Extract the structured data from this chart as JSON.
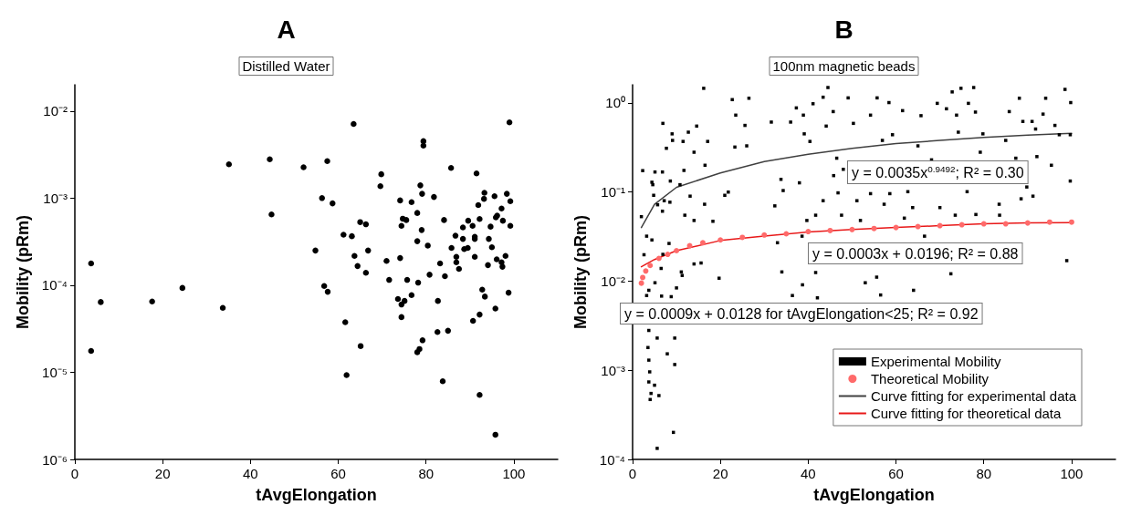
{
  "chart_data": [
    {
      "type": "scatter",
      "title": "A",
      "subtitle": "Distilled Water",
      "xlabel": "tAvgElongation",
      "ylabel": "Mobility (pRm)",
      "log": "y",
      "xlim": [
        0,
        110
      ],
      "xticks": [
        0,
        20,
        40,
        60,
        80,
        100
      ],
      "ylim": [
        1e-06,
        0.02
      ],
      "yticks": [
        {
          "value": 1e-06,
          "label": "10⁻⁶"
        },
        {
          "value": 1e-05,
          "label": "10⁻⁵"
        },
        {
          "value": 0.0001,
          "label": "10⁻⁴"
        },
        {
          "value": 0.001,
          "label": "10⁻³"
        },
        {
          "value": 0.01,
          "label": "10⁻²"
        }
      ],
      "series": [
        {
          "color": "#000000",
          "marker": "circle",
          "x": [
            3.7,
            3.7,
            5.9,
            17.6,
            24.5,
            33.7,
            35.1,
            44.4,
            44.8,
            52.1,
            54.8,
            56.3,
            57.5,
            56.8,
            57.6,
            58.7,
            61.2,
            61.6,
            61.9,
            63.5,
            63.1,
            63.7,
            64.4,
            65.0,
            65.1,
            66.3,
            66.3,
            66.8,
            69.8,
            69.6,
            71.0,
            71.6,
            73.6,
            74.1,
            74.1,
            74.4,
            74.4,
            74.4,
            74.7,
            75.1,
            75.5,
            75.7,
            76.7,
            76.7,
            78.0,
            78.0,
            78.2,
            78.0,
            78.5,
            78.7,
            79.1,
            79.0,
            79.2,
            79.4,
            79.4,
            80.4,
            80.8,
            81.8,
            82.7,
            82.6,
            83.2,
            83.8,
            84.1,
            84.3,
            85.0,
            85.7,
            85.8,
            86.7,
            86.9,
            86.9,
            87.5,
            88.4,
            88.4,
            88.7,
            89.5,
            89.6,
            90.6,
            90.7,
            91.1,
            91.1,
            91.1,
            91.5,
            91.9,
            92.2,
            92.2,
            92.2,
            92.8,
            93.2,
            93.3,
            93.4,
            94.1,
            94.3,
            94.7,
            95.0,
            95.6,
            95.8,
            95.8,
            95.9,
            96.1,
            96.2,
            97.2,
            97.2,
            97.4,
            97.5,
            98.1,
            98.4,
            98.8,
            99.0,
            99.2,
            99.2
          ],
          "values": [
            0.000178,
            1.76e-05,
            6.4e-05,
            6.5e-05,
            9.3e-05,
            5.5e-05,
            0.00244,
            0.00279,
            0.00065,
            0.00226,
            0.00025,
            0.001,
            0.00266,
            9.8e-05,
            8.4e-05,
            0.00087,
            0.00038,
            3.76e-05,
            9.3e-06,
            0.0071,
            0.000365,
            0.000217,
            0.000166,
            0.00053,
            2e-05,
            0.0005,
            0.000139,
            0.00025,
            0.00188,
            0.00137,
            0.00019,
            0.000115,
            6.95e-05,
            0.00094,
            0.000205,
            0.00048,
            6e-05,
            4.3e-05,
            0.00058,
            6.6e-05,
            0.00056,
            0.000115,
            0.0009,
            7.7e-05,
            0.000675,
            0.00032,
            0.000107,
            1.7e-05,
            1.85e-05,
            0.0014,
            0.00112,
            0.00043,
            2.33e-05,
            0.0045,
            0.004,
            0.000285,
            0.000132,
            0.00103,
            6.6e-05,
            2.9e-05,
            0.000178,
            7.9e-06,
            0.00056,
            0.000127,
            3e-05,
            0.00222,
            0.000268,
            0.00037,
            0.000212,
            0.000183,
            0.000154,
            0.00046,
            0.00034,
            0.00026,
            0.000268,
            0.00055,
            0.00048,
            3.9e-05,
            0.00036,
            0.00034,
            0.000212,
            0.00192,
            0.00083,
            0.000575,
            4.6e-05,
            5.5e-06,
            8.9e-05,
            0.00098,
            0.00115,
            7.4e-05,
            0.00017,
            0.00034,
            0.00047,
            0.000273,
            0.00105,
            5.4e-05,
            1.92e-06,
            0.0006,
            0.000198,
            0.00063,
            0.00076,
            0.000183,
            0.000163,
            0.00055,
            0.000217,
            0.00112,
            8.2e-05,
            0.0074,
            0.00092,
            0.00048
          ]
        }
      ]
    },
    {
      "type": "scatter",
      "title": "B",
      "subtitle": "100nm magnetic beads",
      "xlabel": "tAvgElongation",
      "ylabel": "Mobility (pRm)",
      "log": "y",
      "legend": "bottom right",
      "xlim": [
        0,
        110
      ],
      "xticks": [
        0,
        20,
        40,
        60,
        80,
        100
      ],
      "ylim": [
        0.0001,
        1.6
      ],
      "yticks": [
        {
          "value": 0.0001,
          "label": "10⁻⁴"
        },
        {
          "value": 0.001,
          "label": "10⁻³"
        },
        {
          "value": 0.01,
          "label": "10⁻²"
        },
        {
          "value": 0.1,
          "label": "10⁻¹"
        },
        {
          "value": 1,
          "label": "10⁰"
        }
      ],
      "annotations": [
        "y = 0.0035x$^{0.9492}$; R² = 0.30",
        "y = 0.0003x + 0.0196; R² = 0.88",
        "y = 0.0009x + 0.0128 for tAvgElongation<25; R² = 0.92"
      ],
      "series": [
        {
          "name": "Experimental Mobility",
          "type": "scatter",
          "color": "#000000",
          "marker": "square",
          "x": [
            2.3,
            2.0,
            2.6,
            3.2,
            3.7,
            3.7,
            3.5,
            3.7,
            3.9,
            3.7,
            4.2,
            4.0,
            5.0,
            6.0,
            5.6,
            9.3,
            9.6,
            9.6,
            7.9,
            5.6,
            4.4,
            4.6,
            5.1,
            4.8,
            5.7,
            6.9,
            6.8,
            6.8,
            7.2,
            7.7,
            8.5,
            9.0,
            9.1,
            8.6,
            10.8,
            11.5,
            12.7,
            14.6,
            11.7,
            14.0,
            13.1,
            11.9,
            14.0,
            16.2,
            17.1,
            16.5,
            16.4,
            15.6,
            14.0,
            11.1,
            11.3,
            10.0,
            8.8,
            6.6,
            6.9,
            8.3,
            3.2,
            4.4,
            5.1,
            6.5,
            18.3,
            19.7,
            21.0,
            22.7,
            23.5,
            25.6,
            26.5,
            23.3,
            26.0,
            21.8,
            31.6,
            32.4,
            33.0,
            34.0,
            34.3,
            33.8,
            36.0,
            36.4,
            37.3,
            38.0,
            38.9,
            39.1,
            39.7,
            38.6,
            38.7,
            41.1,
            41.7,
            40.4,
            41.7,
            43.4,
            43.4,
            42.1,
            44.1,
            44.5,
            45.7,
            46.5,
            45.8,
            46.8,
            47.6,
            48.0,
            49.1,
            50.3,
            51.1,
            51.9,
            53.0,
            54.2,
            54.2,
            55.7,
            55.6,
            56.5,
            56.9,
            57.3,
            58.4,
            58.6,
            59.2,
            61.5,
            61.9,
            62.7,
            64.0,
            63.8,
            65.0,
            65.7,
            66.5,
            68.1,
            69.4,
            70.0,
            71.5,
            72.5,
            72.8,
            73.8,
            74.2,
            74.8,
            76.2,
            76.5,
            77.7,
            78.1,
            78.2,
            79.2,
            79.8,
            83.6,
            85.0,
            85.8,
            87.3,
            88.1,
            88.5,
            88.9,
            89.8,
            91.0,
            91.2,
            91.8,
            92.1,
            93.5,
            94.1,
            96.2,
            97.2,
            98.5,
            98.9,
            99.7,
            99.8,
            99.7,
            73.5,
            83.5,
            95.4
          ],
          "values": [
            0.174,
            0.053,
            0.0198,
            0.0069,
            0.0079,
            0.0028,
            0.0018,
            0.0013,
            0.00096,
            0.00074,
            0.00055,
            0.00047,
            0.00068,
            0.00052,
            0.000133,
            0.000201,
            0.00116,
            0.0023,
            0.00153,
            0.0023,
            0.129,
            0.121,
            0.168,
            0.092,
            0.072,
            0.59,
            0.168,
            0.061,
            0.08,
            0.31,
            0.077,
            0.45,
            0.38,
            0.133,
            0.121,
            0.37,
            0.47,
            0.55,
            0.175,
            0.28,
            0.09,
            0.055,
            0.048,
            1.46,
            0.37,
            0.2,
            0.073,
            0.016,
            0.0156,
            0.0127,
            0.0116,
            0.0084,
            0.0067,
            0.0068,
            0.02,
            0.0265,
            0.032,
            0.029,
            0.0096,
            0.0139,
            0.047,
            0.0108,
            0.092,
            1.09,
            0.73,
            0.56,
            1.13,
            0.32,
            0.33,
            0.1,
            0.61,
            0.07,
            0.027,
            0.0127,
            0.104,
            0.139,
            0.61,
            0.0069,
            0.88,
            0.127,
            0.73,
            0.45,
            0.048,
            0.032,
            0.0091,
            0.98,
            0.055,
            0.37,
            0.0125,
            1.16,
            0.08,
            0.0065,
            0.55,
            1.49,
            0.8,
            0.24,
            0.153,
            0.098,
            0.055,
            0.18,
            1.14,
            0.59,
            0.08,
            0.048,
            0.0096,
            0.73,
            0.096,
            1.14,
            0.0111,
            0.007,
            0.38,
            0.073,
            1.01,
            0.096,
            0.44,
            0.82,
            0.051,
            0.101,
            0.0079,
            0.067,
            0.33,
            0.72,
            0.032,
            0.23,
            0.99,
            0.067,
            0.86,
            0.0121,
            1.33,
            0.73,
            0.47,
            1.46,
            0.101,
            0.99,
            1.49,
            0.79,
            0.056,
            0.28,
            0.45,
            0.055,
            0.38,
            0.8,
            0.24,
            1.13,
            0.084,
            0.62,
            0.114,
            0.62,
            0.09,
            0.51,
            0.25,
            0.75,
            1.13,
            0.56,
            0.44,
            1.42,
            0.017,
            0.133,
            1.01,
            0.44,
            0.055,
            0.073,
            0.2
          ]
        },
        {
          "name": "Theoretical Mobility",
          "type": "scatter",
          "color": "#ff6a6a",
          "marker": "circle",
          "x": [
            2,
            2.3,
            3,
            4,
            6,
            8,
            10,
            13,
            16,
            20,
            25,
            30,
            35,
            40,
            45,
            50,
            55,
            60,
            65,
            70,
            75,
            80,
            85,
            90,
            95,
            100
          ],
          "values": [
            0.0095,
            0.011,
            0.013,
            0.015,
            0.018,
            0.02,
            0.022,
            0.025,
            0.027,
            0.029,
            0.031,
            0.033,
            0.034,
            0.036,
            0.037,
            0.038,
            0.039,
            0.04,
            0.041,
            0.042,
            0.043,
            0.044,
            0.044,
            0.045,
            0.046,
            0.046
          ]
        },
        {
          "name": "Curve fitting for experimental data",
          "type": "line",
          "color": "#404040",
          "x": [
            2,
            5,
            10,
            20,
            30,
            40,
            50,
            60,
            70,
            80,
            90,
            100
          ],
          "values": [
            0.04,
            0.073,
            0.113,
            0.164,
            0.22,
            0.265,
            0.31,
            0.35,
            0.38,
            0.41,
            0.436,
            0.457
          ]
        },
        {
          "name": "Curve fitting for theoretical data",
          "type": "line",
          "color": "#e81818",
          "x": [
            2,
            5,
            10,
            20,
            30,
            40,
            50,
            60,
            70,
            80,
            90,
            100
          ],
          "values": [
            0.0145,
            0.0175,
            0.022,
            0.0286,
            0.032,
            0.0356,
            0.038,
            0.04,
            0.042,
            0.044,
            0.045,
            0.0453
          ]
        }
      ]
    }
  ]
}
